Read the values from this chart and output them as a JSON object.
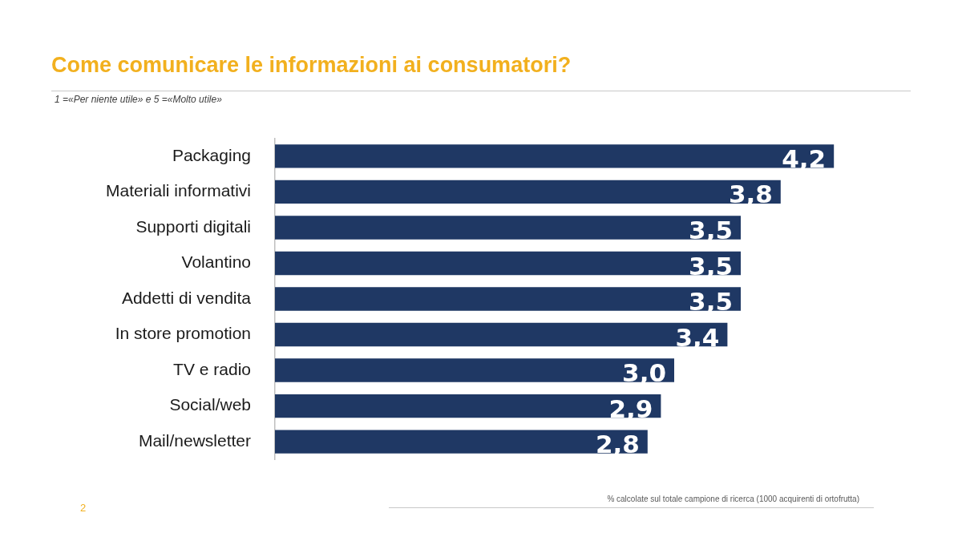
{
  "chart_data": {
    "type": "bar",
    "orientation": "horizontal",
    "title": "Come comunicare le informazioni ai consumatori?",
    "subtitle": "1 =«Per niente utile» e 5 =«Molto utile»",
    "categories": [
      "Packaging",
      "Materiali informativi",
      "Supporti digitali",
      "Volantino",
      "Addetti di vendita",
      "In store promotion",
      "TV e radio",
      "Social/web",
      "Mail/newsletter"
    ],
    "values": [
      4.2,
      3.8,
      3.5,
      3.5,
      3.5,
      3.4,
      3.0,
      2.9,
      2.8
    ],
    "value_labels": [
      "4,2",
      "3,8",
      "3,5",
      "3,5",
      "3,5",
      "3,4",
      "3,0",
      "2,9",
      "2,8"
    ],
    "color": "#1f3864",
    "tick_labels": "y",
    "annotations": [
      "% calcolate sul totale campione di ricerca (1000 acquirenti di ortofrutta)",
      "2"
    ]
  }
}
